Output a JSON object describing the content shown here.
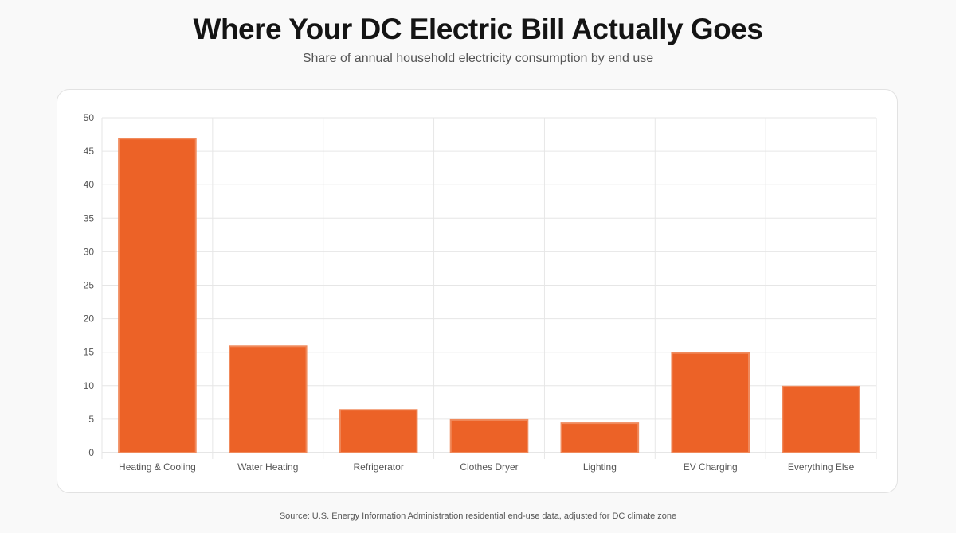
{
  "title": "Where Your DC Electric Bill Actually Goes",
  "subtitle": "Share of annual household electricity consumption by end use",
  "source": "Source: U.S. Energy Information Administration residential end-use data, adjusted for DC climate zone",
  "colors": {
    "bar_fill": "#ec6227",
    "bar_border": "#f08a5c",
    "grid": "#e6e6e6",
    "axis": "#cccccc"
  },
  "chart_data": {
    "type": "bar",
    "categories": [
      "Heating & Cooling",
      "Water Heating",
      "Refrigerator",
      "Clothes Dryer",
      "Lighting",
      "EV Charging",
      "Everything Else"
    ],
    "values": [
      47,
      16,
      6.5,
      5,
      4.5,
      15,
      10
    ],
    "title": "Where Your DC Electric Bill Actually Goes",
    "subtitle": "Share of annual household electricity consumption by end use",
    "xlabel": "",
    "ylabel": "",
    "ylim": [
      0,
      50
    ],
    "yticks": [
      0,
      5,
      10,
      15,
      20,
      25,
      30,
      35,
      40,
      45,
      50
    ],
    "grid": true,
    "legend": "none"
  }
}
